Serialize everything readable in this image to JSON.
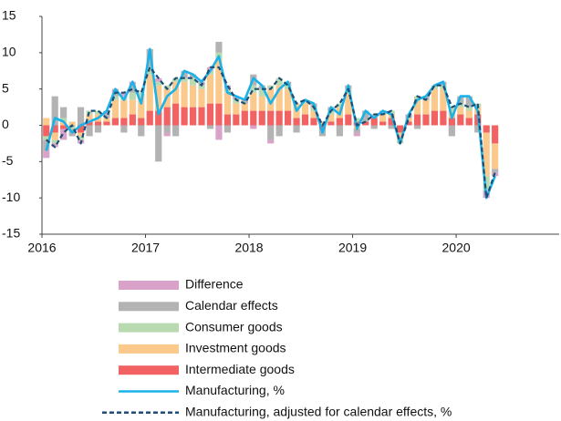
{
  "chart_data": {
    "type": "bar",
    "categories": [
      "2016",
      null,
      null,
      null,
      null,
      null,
      null,
      null,
      null,
      null,
      null,
      null,
      "2017",
      null,
      null,
      null,
      null,
      null,
      null,
      null,
      null,
      null,
      null,
      null,
      "2018",
      null,
      null,
      null,
      null,
      null,
      null,
      null,
      null,
      null,
      null,
      null,
      "2019",
      null,
      null,
      null,
      null,
      null,
      null,
      null,
      null,
      null,
      null,
      null,
      "2020",
      null,
      null,
      null,
      null
    ],
    "ylim": [
      -15,
      15
    ],
    "yticks": [
      -15,
      -10,
      -5,
      0,
      5,
      10,
      15
    ],
    "series": [
      {
        "name": "Difference",
        "type": "bar",
        "color": "#d9a3c9",
        "values": [
          -1,
          -0.5,
          -1.5,
          0,
          -0.5,
          0,
          0,
          0,
          0.5,
          0.5,
          0.5,
          0,
          0,
          0.5,
          -0.5,
          0,
          0,
          0,
          0,
          0.5,
          -2,
          0.5,
          0,
          0,
          -0.5,
          0,
          -0.5,
          0,
          0,
          0,
          0,
          0,
          0,
          0,
          0,
          0,
          -0.5,
          0,
          0,
          0,
          0,
          0,
          0,
          0,
          0,
          0,
          0,
          0,
          0,
          0,
          0,
          -1,
          -0.5
        ]
      },
      {
        "name": "Calendar effects",
        "type": "bar",
        "color": "#b3b3b3",
        "values": [
          -1.5,
          4,
          1.5,
          -1,
          2.5,
          -1.5,
          -1,
          1,
          0.5,
          -1,
          1,
          -1.5,
          2.5,
          -5,
          -1,
          -1.5,
          1,
          0.5,
          0.5,
          -0.5,
          1.5,
          -1,
          0.5,
          0.5,
          1.5,
          0.5,
          -2,
          -1.5,
          0.5,
          -1,
          0,
          0.5,
          -1,
          0.5,
          -1.5,
          0.5,
          -0.5,
          1.5,
          -0.5,
          0.5,
          -0.5,
          0,
          0.5,
          -0.5,
          0.5,
          0,
          0.5,
          -1.5,
          1,
          1.5,
          -1,
          0,
          -0.5
        ]
      },
      {
        "name": "Consumer goods",
        "type": "bar",
        "color": "#b9d9b1",
        "values": [
          -0.5,
          -0.5,
          0.5,
          -0.5,
          -0.5,
          0.5,
          0.5,
          0,
          0.5,
          0.5,
          1,
          0.5,
          1,
          0.5,
          0.5,
          0.5,
          0.5,
          1,
          0.5,
          0.5,
          1,
          0.5,
          0.5,
          0,
          1,
          1,
          0.5,
          1,
          0.5,
          0,
          0.5,
          0.5,
          0,
          0.5,
          0.5,
          0.5,
          0.5,
          0,
          0,
          0,
          0.5,
          -0.5,
          0,
          0.5,
          0,
          0.5,
          0.5,
          0.5,
          0.5,
          0.5,
          0.5,
          -2,
          0
        ]
      },
      {
        "name": "Investment goods",
        "type": "bar",
        "color": "#fcc98c",
        "values": [
          1,
          -1,
          0.5,
          0.5,
          -0.5,
          1,
          1,
          0.5,
          2.5,
          2.5,
          2,
          3,
          5,
          3.5,
          2.5,
          3,
          3.5,
          3,
          2.5,
          4,
          6,
          3,
          1.5,
          1,
          2.5,
          2,
          3,
          3.5,
          3,
          2,
          1.5,
          1,
          0.5,
          1,
          1.5,
          3,
          -0.5,
          0,
          0.5,
          1,
          0.5,
          -1,
          0.5,
          2,
          2,
          3,
          3,
          1,
          1,
          1,
          1,
          -6,
          -3.5
        ]
      },
      {
        "name": "Intermediate goods",
        "type": "bar",
        "color": "#f26262",
        "values": [
          -1.5,
          -1,
          -0.5,
          0,
          -1,
          0.5,
          0.5,
          0.5,
          1,
          1,
          1.5,
          1,
          2,
          2,
          2.5,
          3,
          2.5,
          2.5,
          2.5,
          3,
          3,
          1.5,
          1.5,
          2,
          2,
          2,
          2,
          2,
          2,
          1,
          1.5,
          1,
          -0.5,
          0.5,
          1,
          1.5,
          0.5,
          0.5,
          1,
          0.5,
          1,
          -1,
          0.5,
          1.5,
          1.5,
          2,
          2,
          1,
          1.5,
          1,
          1.5,
          -1,
          -2.5
        ]
      },
      {
        "name": "Manufacturing, %",
        "type": "line",
        "color": "#1ab2e8",
        "values": [
          -3.5,
          1,
          0.5,
          -1,
          0,
          0.5,
          1,
          2,
          5,
          3.5,
          6,
          3,
          10.5,
          1.5,
          4,
          5,
          7.5,
          7,
          6,
          7.5,
          9.5,
          4.5,
          4,
          3.5,
          6.5,
          5.5,
          3,
          5,
          6,
          2,
          3.5,
          3,
          -1,
          2.5,
          1.5,
          5.5,
          -0.5,
          2,
          1,
          2,
          1.5,
          -2.5,
          1.5,
          3.5,
          4,
          5.5,
          6,
          1,
          4,
          4,
          2,
          -10,
          -7
        ]
      },
      {
        "name": "Manufacturing, adjusted for calendar effects, %",
        "type": "line",
        "dashed": true,
        "color": "#1c4e77",
        "values": [
          -2,
          -3,
          -1,
          0,
          -2.5,
          2,
          2,
          1,
          4.5,
          4.5,
          5,
          4.5,
          8,
          6.5,
          5,
          6.5,
          6.5,
          6.5,
          5.5,
          8,
          8,
          5.5,
          3.5,
          3,
          5,
          5,
          5,
          6.5,
          5.5,
          3,
          3.5,
          2.5,
          0,
          2,
          3,
          5,
          0,
          0.5,
          1.5,
          1.5,
          2,
          -2.5,
          1,
          4,
          3.5,
          5.5,
          5.5,
          2.5,
          3,
          2.5,
          3,
          -10,
          -6.5
        ]
      }
    ]
  }
}
